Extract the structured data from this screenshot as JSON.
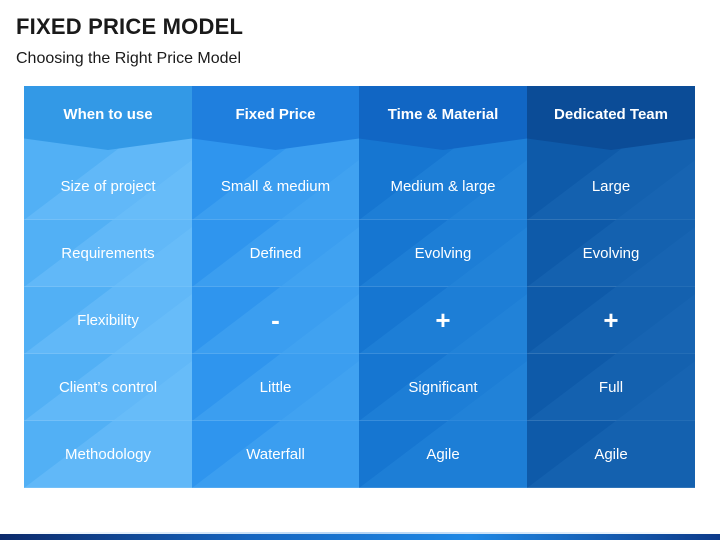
{
  "slide": {
    "title": "FIXED PRICE MODEL",
    "subtitle": "Choosing the Right Price Model"
  },
  "table": {
    "columns": [
      {
        "header": "When to use",
        "cells": [
          "Size of project",
          "Requirements",
          "Flexibility",
          "Client’s control",
          "Methodology"
        ],
        "header_color": "#3399e6",
        "body_color": "#52b0f5",
        "stripe_color": "#6ec0fa"
      },
      {
        "header": "Fixed Price",
        "cells": [
          "Small & medium",
          "Defined",
          "-",
          "Little",
          "Waterfall"
        ],
        "header_color": "#1f7fde",
        "body_color": "#2f95ee",
        "stripe_color": "#45a5f3"
      },
      {
        "header": "Time & Material",
        "cells": [
          "Medium & large",
          "Evolving",
          "+",
          "Significant",
          "Agile"
        ],
        "header_color": "#1166c4",
        "body_color": "#1676d1",
        "stripe_color": "#2585da"
      },
      {
        "header": "Dedicated Team",
        "cells": [
          "Large",
          "Evolving",
          "+",
          "Full",
          "Agile"
        ],
        "header_color": "#0b4c97",
        "body_color": "#0e5aa9",
        "stripe_color": "#1a67b5"
      }
    ]
  }
}
